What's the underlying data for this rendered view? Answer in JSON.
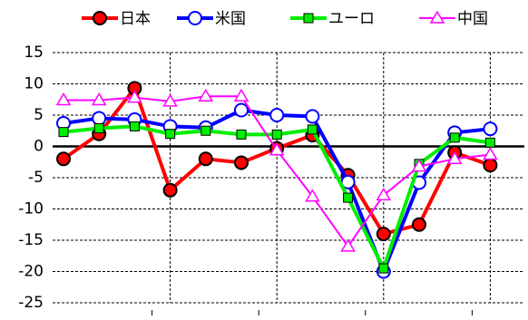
{
  "chart_data": {
    "type": "line",
    "categories": [
      null,
      null,
      null,
      null,
      null,
      null,
      null,
      null,
      null,
      null,
      null,
      null,
      null
    ],
    "series": [
      {
        "name": "日本",
        "color": "#ff0000",
        "marker": "circle",
        "values": [
          -2,
          2,
          9.3,
          -7,
          -2,
          -2.6,
          -0.3,
          1.8,
          -4.6,
          -14,
          -12.5,
          -1,
          -3
        ]
      },
      {
        "name": "米国",
        "color": "#0000ff",
        "marker": "circle-open",
        "values": [
          3.7,
          4.5,
          4.3,
          3.2,
          3,
          5.8,
          5,
          4.8,
          -5.7,
          -20,
          -5.8,
          2.2,
          2.8
        ]
      },
      {
        "name": "ユーロ",
        "color": "#00ee00",
        "marker": "square",
        "values": [
          2.3,
          2.9,
          3.2,
          2,
          2.5,
          1.9,
          1.9,
          2.7,
          -8.2,
          -19.5,
          -2.8,
          1.4,
          0.6
        ]
      },
      {
        "name": "中国",
        "color": "#ff00ff",
        "marker": "triangle-open",
        "values": [
          7.4,
          7.4,
          7.8,
          7.2,
          8,
          8,
          -0.6,
          -8,
          -16,
          -7.8,
          -3.2,
          -2,
          -1.3
        ]
      }
    ],
    "ylim": [
      -25,
      15
    ],
    "yticks": [
      -25,
      -20,
      -15,
      -10,
      -5,
      0,
      5,
      10,
      15
    ],
    "grid": true
  }
}
